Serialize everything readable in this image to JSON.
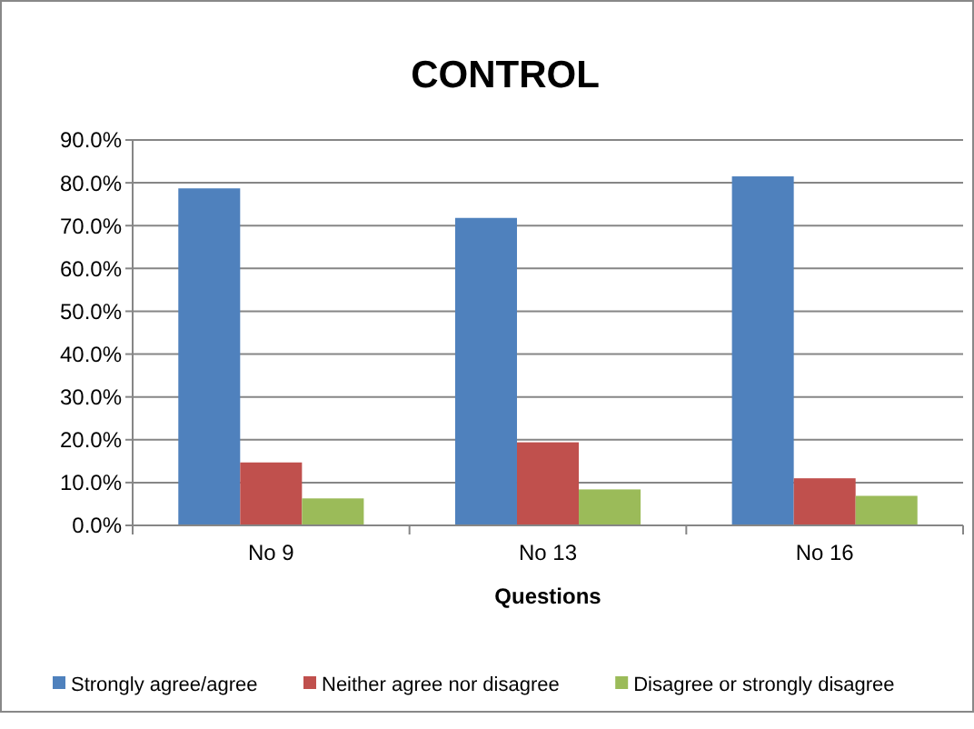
{
  "chart_data": {
    "type": "bar",
    "title": "CONTROL",
    "xlabel": "Questions",
    "categories": [
      "No 9",
      "No 13",
      "No 16"
    ],
    "series": [
      {
        "name": "Strongly agree/agree",
        "color": "#4f81bd",
        "values": [
          78.7,
          71.8,
          81.5
        ]
      },
      {
        "name": "Neither agree nor disagree",
        "color": "#c0504d",
        "values": [
          14.7,
          19.4,
          11.0
        ]
      },
      {
        "name": "Disagree or strongly disagree",
        "color": "#9bbb59",
        "values": [
          6.3,
          8.4,
          6.9
        ]
      }
    ],
    "ylim": [
      0,
      90
    ],
    "yticks": [
      {
        "value": 0,
        "label": "0.0%"
      },
      {
        "value": 10,
        "label": "10.0%"
      },
      {
        "value": 20,
        "label": "20.0%"
      },
      {
        "value": 30,
        "label": "30.0%"
      },
      {
        "value": 40,
        "label": "40.0%"
      },
      {
        "value": 50,
        "label": "50.0%"
      },
      {
        "value": 60,
        "label": "60.0%"
      },
      {
        "value": 70,
        "label": "70.0%"
      },
      {
        "value": 80,
        "label": "80.0%"
      },
      {
        "value": 90,
        "label": "90.0%"
      }
    ],
    "grid": "y",
    "legend": "bottom"
  }
}
